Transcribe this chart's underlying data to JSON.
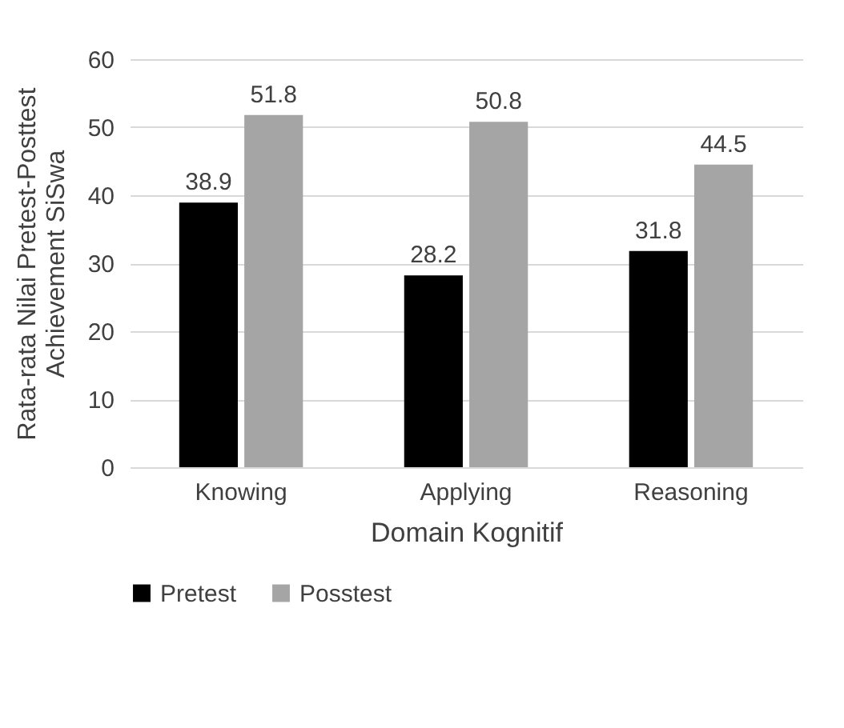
{
  "chart_data": {
    "type": "bar",
    "xlabel": "Domain Kognitif",
    "ylabel": "Rata-rata Nilai Pretest-Posttest Achievement SiSwa",
    "categories": [
      "Knowing",
      "Applying",
      "Reasoning"
    ],
    "series": [
      {
        "name": "Pretest",
        "color": "#000000",
        "values": [
          38.9,
          28.2,
          31.8
        ]
      },
      {
        "name": "Posstest",
        "color": "#a5a5a5",
        "values": [
          51.8,
          50.8,
          44.5
        ]
      }
    ],
    "ylim": [
      0,
      60
    ],
    "yticks": [
      0,
      10,
      20,
      30,
      40,
      50,
      60
    ],
    "grid": "y",
    "legend": "bottom",
    "data_labels": true
  }
}
